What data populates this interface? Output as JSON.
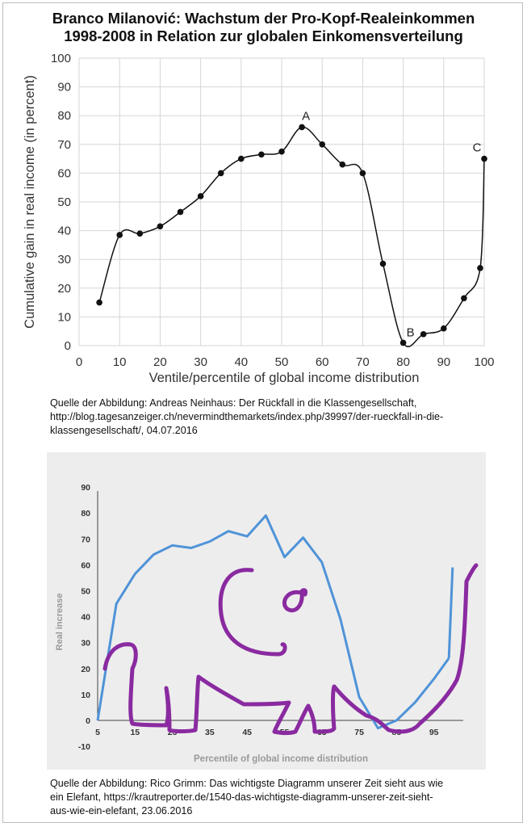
{
  "title_line1": "Branco Milanović: Wachstum der Pro-Kopf-Realeinkommen",
  "title_line2": "1998-2008 in Relation zur globalen Einkomensverteilung",
  "caption1_line1": "Quelle der Abbildung: Andreas Neinhaus: Der Rückfall in die Klassengesellschaft,",
  "caption1_line2": "http://blog.tagesanzeiger.ch/nevermindthemarkets/index.php/39997/der-rueckfall-in-die-",
  "caption1_line3": "klassengesellschaft/, 04.07.2016",
  "caption2_line1": "Quelle der Abbildung: Rico Grimm: Das wichtigste Diagramm unserer Zeit sieht aus wie",
  "caption2_line2": "ein Elefant, https://krautreporter.de/1540-das-wichtigste-diagramm-unserer-zeit-sieht-",
  "caption2_line3": "aus-wie-ein-elefant, 23.06.2016",
  "chart_data": [
    {
      "type": "line",
      "xlabel": "Ventile/percentile of global income distribution",
      "ylabel": "Cumulative gain in real income (in percent)",
      "xlim": [
        0,
        100
      ],
      "ylim": [
        0,
        100
      ],
      "xticks": [
        0,
        10,
        20,
        30,
        40,
        50,
        60,
        70,
        80,
        90,
        100
      ],
      "yticks": [
        0,
        10,
        20,
        30,
        40,
        50,
        60,
        70,
        80,
        90,
        100
      ],
      "grid": true,
      "series": [
        {
          "x": [
            5,
            10,
            15,
            20,
            25,
            30,
            35,
            40,
            45,
            50,
            55,
            60,
            65,
            70,
            75,
            80,
            85,
            90,
            95,
            99,
            100
          ],
          "y": [
            15,
            38.5,
            39,
            41.5,
            46.5,
            52,
            60,
            65,
            66.5,
            67.5,
            76,
            70,
            63,
            60,
            28.5,
            1,
            4,
            6,
            16.5,
            27,
            65
          ],
          "color": "#000000"
        }
      ],
      "annotations": [
        {
          "label": "A",
          "x": 55,
          "y": 76
        },
        {
          "label": "B",
          "x": 80,
          "y": 1
        },
        {
          "label": "C",
          "x": 100,
          "y": 65
        }
      ]
    },
    {
      "type": "line",
      "xlabel": "Percentile of global income distribution",
      "ylabel": "Real increase",
      "ylim": [
        -10,
        90
      ],
      "yticks": [
        -10,
        0,
        10,
        20,
        30,
        40,
        50,
        60,
        70,
        80,
        90
      ],
      "xticks": [
        5,
        15,
        25,
        35,
        45,
        55,
        65,
        75,
        85,
        95
      ],
      "grid": false,
      "series": [
        {
          "x": [
            5,
            10,
            15,
            20,
            25,
            30,
            35,
            40,
            45,
            50,
            55,
            60,
            65,
            70,
            75,
            80,
            85,
            90,
            95,
            99
          ],
          "y": [
            0,
            45,
            56.5,
            64,
            67.5,
            66.5,
            69,
            73,
            71,
            79,
            63,
            70.5,
            61,
            39,
            9,
            -3,
            0,
            7,
            16,
            24
          ],
          "color": "#4f93d8"
        },
        {
          "x": [
            99,
            100
          ],
          "y": [
            24,
            59
          ],
          "color": "#4f93d8"
        }
      ],
      "drawing_color": "#8a2aa0"
    }
  ]
}
